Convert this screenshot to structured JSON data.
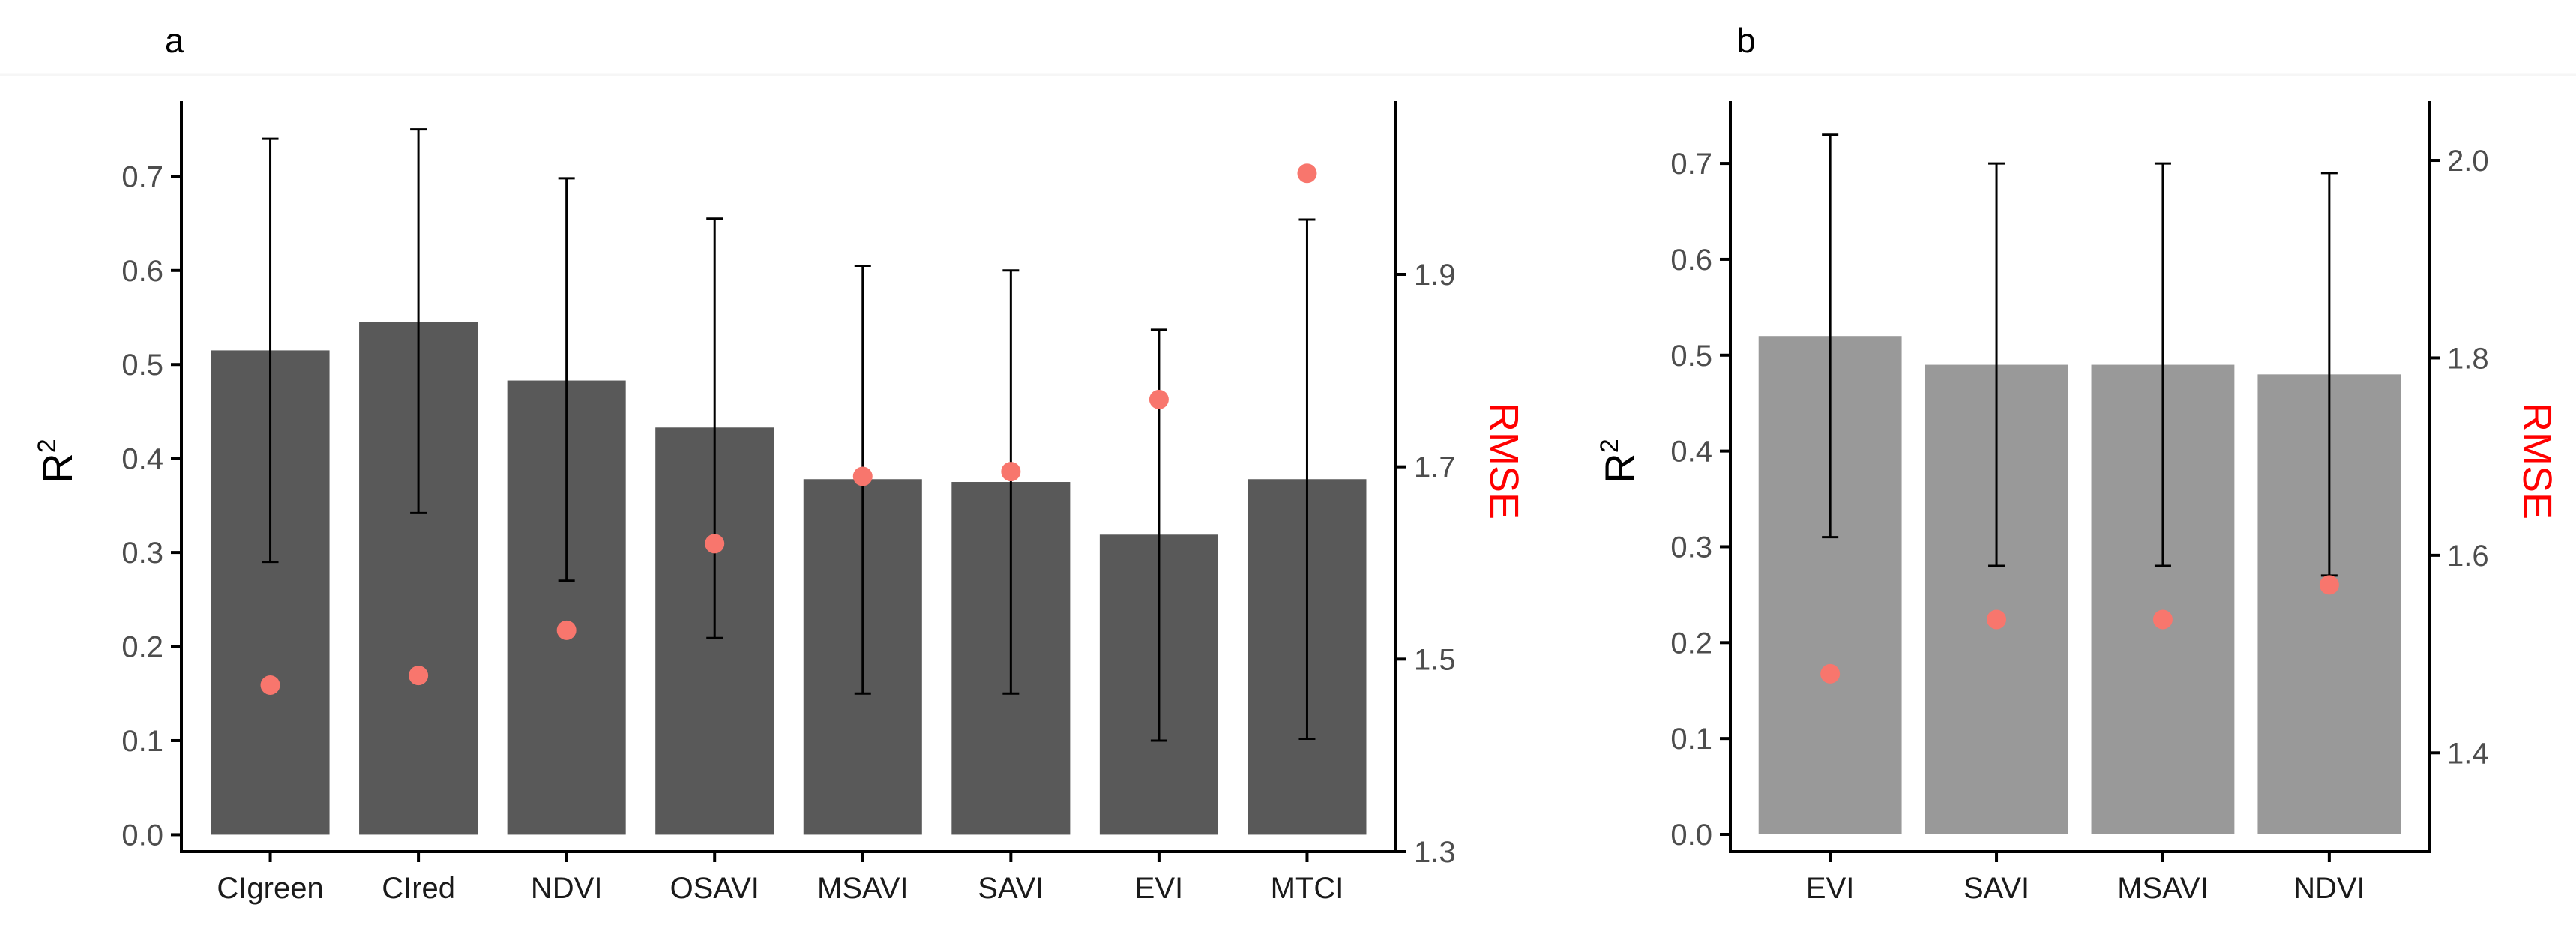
{
  "colors": {
    "bar_a": "#595959",
    "bar_b": "#999999",
    "rmse_point": "#F8766D",
    "rmse_title": "#FF0000",
    "axis": "#000000",
    "error_bar": "#000000"
  },
  "chart_data": [
    {
      "panel": "a",
      "type": "bar",
      "categories": [
        "CIgreen",
        "CIred",
        "NDVI",
        "OSAVI",
        "MSAVI",
        "SAVI",
        "EVI",
        "MTCI"
      ],
      "series": [
        {
          "name": "R2",
          "axis": "left",
          "values": [
            0.515,
            0.545,
            0.483,
            0.433,
            0.378,
            0.375,
            0.319,
            0.378
          ],
          "error_low": [
            0.29,
            0.342,
            0.27,
            0.209,
            0.15,
            0.15,
            0.1,
            0.102
          ],
          "error_high": [
            0.74,
            0.75,
            0.698,
            0.655,
            0.605,
            0.6,
            0.537,
            0.654
          ]
        },
        {
          "name": "RMSE",
          "axis": "right",
          "type": "point",
          "values": [
            1.473,
            1.483,
            1.53,
            1.62,
            1.69,
            1.695,
            1.77,
            2.005
          ]
        }
      ],
      "ylabel": "R",
      "ylabel_sup": "2",
      "y2label": "RMSE",
      "ylim": [
        -0.018,
        0.78
      ],
      "yticks": [
        "0.0",
        "0.1",
        "0.2",
        "0.3",
        "0.4",
        "0.5",
        "0.6",
        "0.7"
      ],
      "y2lim": [
        1.3,
        2.08
      ],
      "y2ticks": [
        "1.3",
        "1.5",
        "1.7",
        "1.9"
      ],
      "grid": false
    },
    {
      "panel": "b",
      "type": "bar",
      "categories": [
        "EVI",
        "SAVI",
        "MSAVI",
        "NDVI"
      ],
      "series": [
        {
          "name": "R2",
          "axis": "left",
          "values": [
            0.52,
            0.49,
            0.49,
            0.48
          ],
          "error_low": [
            0.31,
            0.28,
            0.28,
            0.27
          ],
          "error_high": [
            0.73,
            0.7,
            0.7,
            0.69
          ]
        },
        {
          "name": "RMSE",
          "axis": "right",
          "type": "point",
          "values": [
            1.48,
            1.535,
            1.535,
            1.57
          ]
        }
      ],
      "ylabel": "R",
      "ylabel_sup": "2",
      "y2label": "RMSE",
      "ylim": [
        -0.018,
        0.765
      ],
      "yticks": [
        "0.0",
        "0.1",
        "0.2",
        "0.3",
        "0.4",
        "0.5",
        "0.6",
        "0.7"
      ],
      "y2lim": [
        1.3,
        2.06
      ],
      "y2ticks": [
        "1.4",
        "1.6",
        "1.8",
        "2.0"
      ],
      "grid": false
    }
  ]
}
